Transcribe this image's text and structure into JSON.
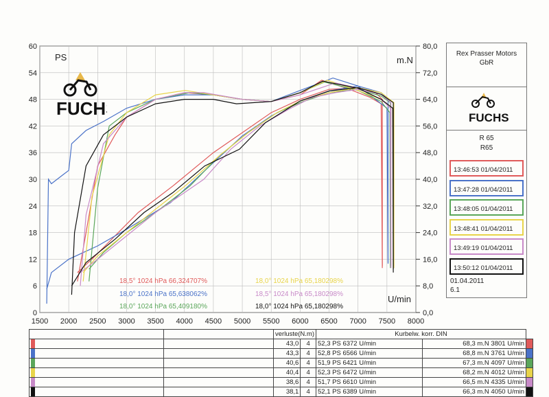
{
  "chart_data": {
    "type": "line",
    "xlabel": "U/min",
    "left_axis_label": "PS",
    "right_axis_label": "m.N",
    "x_ticks": [
      1500,
      2000,
      2500,
      3000,
      3500,
      4000,
      4500,
      5000,
      5500,
      6000,
      6500,
      7000,
      7500,
      8000
    ],
    "y_left_ticks": [
      0,
      6,
      12,
      18,
      24,
      30,
      36,
      42,
      48,
      54,
      60
    ],
    "y_right_ticks": [
      "0,0",
      "8,0",
      "16,0",
      "24,0",
      "32,0",
      "40,0",
      "48,0",
      "56,0",
      "64,0",
      "72,0",
      "80,0"
    ],
    "xlim": [
      1500,
      8000
    ],
    "ylim_left": [
      0,
      60
    ],
    "ylim_right": [
      0,
      80
    ],
    "grid": true,
    "series": [
      {
        "color": "#e05a5a",
        "power": [
          [
            2150,
            7
          ],
          [
            2300,
            18
          ],
          [
            2500,
            33
          ],
          [
            2800,
            40
          ],
          [
            3000,
            44
          ],
          [
            3500,
            48
          ],
          [
            4000,
            49.5
          ],
          [
            4500,
            49
          ],
          [
            5000,
            48
          ],
          [
            5500,
            47.5
          ],
          [
            6000,
            49
          ],
          [
            6372,
            52.3
          ],
          [
            6800,
            50.5
          ],
          [
            7200,
            48.5
          ],
          [
            7400,
            47
          ],
          [
            7420,
            10
          ]
        ],
        "torque": [
          [
            2150,
            12
          ],
          [
            2400,
            16
          ],
          [
            2800,
            23
          ],
          [
            3200,
            30
          ],
          [
            3801,
            38
          ],
          [
            4500,
            48
          ],
          [
            5000,
            54
          ],
          [
            5500,
            60
          ],
          [
            6000,
            64
          ],
          [
            6500,
            67
          ],
          [
            7000,
            67.5
          ],
          [
            7300,
            66
          ],
          [
            7420,
            64
          ],
          [
            7420,
            14
          ]
        ]
      },
      {
        "color": "#4a72c8",
        "power": [
          [
            1620,
            2
          ],
          [
            1650,
            30
          ],
          [
            1700,
            29
          ],
          [
            1900,
            31
          ],
          [
            2000,
            32
          ],
          [
            2050,
            38
          ],
          [
            2300,
            41
          ],
          [
            2600,
            43
          ],
          [
            3000,
            46
          ],
          [
            3500,
            48
          ],
          [
            4000,
            49
          ],
          [
            4500,
            49
          ],
          [
            5000,
            48
          ],
          [
            5500,
            47.5
          ],
          [
            6000,
            50
          ],
          [
            6566,
            52.8
          ],
          [
            7000,
            51
          ],
          [
            7300,
            48
          ],
          [
            7500,
            46
          ],
          [
            7520,
            11
          ]
        ],
        "torque": [
          [
            1620,
            7
          ],
          [
            1700,
            12
          ],
          [
            2000,
            16
          ],
          [
            2500,
            20
          ],
          [
            3000,
            25
          ],
          [
            3761,
            33
          ],
          [
            4500,
            45
          ],
          [
            5000,
            53
          ],
          [
            5500,
            59
          ],
          [
            6000,
            63.5
          ],
          [
            6500,
            66.5
          ],
          [
            7000,
            68
          ],
          [
            7400,
            66
          ],
          [
            7520,
            64
          ],
          [
            7520,
            15
          ]
        ]
      },
      {
        "color": "#5aa65a",
        "power": [
          [
            2350,
            7
          ],
          [
            2500,
            28
          ],
          [
            2700,
            42
          ],
          [
            3000,
            45
          ],
          [
            3500,
            48
          ],
          [
            4097,
            49.5
          ],
          [
            4500,
            49
          ],
          [
            5000,
            48
          ],
          [
            5500,
            47.5
          ],
          [
            6000,
            49.5
          ],
          [
            6421,
            51.9
          ],
          [
            7000,
            50
          ],
          [
            7400,
            47.5
          ],
          [
            7550,
            45
          ],
          [
            7560,
            10
          ]
        ],
        "torque": [
          [
            2350,
            13
          ],
          [
            2600,
            18
          ],
          [
            3000,
            24
          ],
          [
            3500,
            30
          ],
          [
            4097,
            38
          ],
          [
            4600,
            47
          ],
          [
            5100,
            54
          ],
          [
            5600,
            60
          ],
          [
            6000,
            63
          ],
          [
            6500,
            66
          ],
          [
            7000,
            67
          ],
          [
            7400,
            65
          ],
          [
            7560,
            63
          ],
          [
            7560,
            14
          ]
        ]
      },
      {
        "color": "#e8d44a",
        "power": [
          [
            2250,
            7
          ],
          [
            2400,
            26
          ],
          [
            2700,
            40
          ],
          [
            3000,
            45
          ],
          [
            3500,
            49
          ],
          [
            4012,
            50
          ],
          [
            4500,
            49
          ],
          [
            5000,
            48
          ],
          [
            5500,
            47.5
          ],
          [
            6000,
            49.5
          ],
          [
            6472,
            52.3
          ],
          [
            7000,
            50
          ],
          [
            7400,
            48
          ],
          [
            7600,
            46
          ],
          [
            7620,
            10
          ]
        ],
        "torque": [
          [
            2250,
            12
          ],
          [
            2500,
            17
          ],
          [
            3000,
            24
          ],
          [
            3500,
            31
          ],
          [
            4012,
            38
          ],
          [
            4600,
            47
          ],
          [
            5100,
            54
          ],
          [
            5600,
            60
          ],
          [
            6000,
            63.5
          ],
          [
            6500,
            66
          ],
          [
            7000,
            67.5
          ],
          [
            7400,
            66
          ],
          [
            7620,
            63
          ],
          [
            7620,
            14
          ]
        ]
      },
      {
        "color": "#c88ac8",
        "power": [
          [
            2200,
            6
          ],
          [
            2300,
            22
          ],
          [
            2600,
            38
          ],
          [
            3000,
            44
          ],
          [
            3500,
            48
          ],
          [
            4000,
            49.5
          ],
          [
            4335,
            49.5
          ],
          [
            5000,
            48
          ],
          [
            5500,
            47.5
          ],
          [
            6000,
            49
          ],
          [
            6610,
            51.7
          ],
          [
            7000,
            50.5
          ],
          [
            7400,
            48
          ],
          [
            7560,
            46
          ],
          [
            7570,
            10
          ]
        ],
        "torque": [
          [
            2200,
            12
          ],
          [
            2500,
            16
          ],
          [
            3000,
            23
          ],
          [
            3500,
            30
          ],
          [
            4335,
            40
          ],
          [
            4800,
            49
          ],
          [
            5300,
            56
          ],
          [
            5800,
            61
          ],
          [
            6200,
            64.5
          ],
          [
            6610,
            66
          ],
          [
            7000,
            67
          ],
          [
            7400,
            65.5
          ],
          [
            7570,
            63
          ],
          [
            7570,
            14
          ]
        ]
      },
      {
        "color": "#111111",
        "power": [
          [
            2050,
            4
          ],
          [
            2100,
            18
          ],
          [
            2300,
            33
          ],
          [
            2600,
            40
          ],
          [
            3000,
            44
          ],
          [
            3500,
            47
          ],
          [
            4000,
            48
          ],
          [
            4500,
            48
          ],
          [
            4900,
            47
          ],
          [
            5500,
            47.5
          ],
          [
            6000,
            49.5
          ],
          [
            6389,
            52.1
          ],
          [
            7000,
            50.5
          ],
          [
            7400,
            48
          ],
          [
            7600,
            46
          ],
          [
            7610,
            9
          ]
        ],
        "torque": [
          [
            2050,
            8
          ],
          [
            2300,
            15
          ],
          [
            2800,
            22
          ],
          [
            3300,
            30
          ],
          [
            3800,
            36
          ],
          [
            4350,
            44
          ],
          [
            4950,
            49
          ],
          [
            5400,
            57
          ],
          [
            6000,
            63.5
          ],
          [
            6500,
            66.5
          ],
          [
            7000,
            67.5
          ],
          [
            7400,
            65.5
          ],
          [
            7610,
            63
          ],
          [
            7610,
            13
          ]
        ]
      }
    ],
    "legend": [
      {
        "text": "18,5°  1024 hPa  66,324707%",
        "color": "#e05a5a"
      },
      {
        "text": "18,0°  1024 hPa  65,638062%",
        "color": "#4a72c8"
      },
      {
        "text": "18,0°  1024 hPa  65,409180%",
        "color": "#5aa65a"
      },
      {
        "text": "18,0°  1024 hPa  65,180298%",
        "color": "#e8d44a"
      },
      {
        "text": "18,5°  1024 hPa  65,180298%",
        "color": "#c88ac8"
      },
      {
        "text": "18,0°  1024 hPa  65,180298%",
        "color": "#111111"
      }
    ]
  },
  "panel": {
    "company_line1": "Rex Prasser Motors",
    "company_line2": "GbR",
    "model_line1": "R 65",
    "model_line2": "R65",
    "runs": [
      {
        "label": "13:46:53  01/04/2011",
        "color": "#e05a5a"
      },
      {
        "label": "13:47:28  01/04/2011",
        "color": "#4a72c8"
      },
      {
        "label": "13:48:05  01/04/2011",
        "color": "#5aa65a"
      },
      {
        "label": "13:48:41  01/04/2011",
        "color": "#e8d44a"
      },
      {
        "label": "13:49:19  01/04/2011",
        "color": "#c88ac8"
      },
      {
        "label": "13:50:12  01/04/2011",
        "color": "#111111"
      }
    ],
    "date": "01.04.2011",
    "version": "6.1"
  },
  "logo_text": "FUCHS",
  "table": {
    "header_verluste": "verluste(N.m)",
    "header_kurbel": "Kurbelw. korr. DIN",
    "rows": [
      {
        "color": "#e05a5a",
        "loss": "43,0",
        "n": "4",
        "power": "52,3 PS 6372 U/min",
        "torque": "68,3 m.N 3801 U/min"
      },
      {
        "color": "#4a72c8",
        "loss": "43,3",
        "n": "4",
        "power": "52,8 PS 6566 U/min",
        "torque": "68,8 m.N 3761 U/min"
      },
      {
        "color": "#5aa65a",
        "loss": "40,6",
        "n": "4",
        "power": "51,9 PS 6421 U/min",
        "torque": "67,3 m.N 4097 U/min"
      },
      {
        "color": "#e8d44a",
        "loss": "40,4",
        "n": "4",
        "power": "52,3 PS 6472 U/min",
        "torque": "68,2 m.N 4012 U/min"
      },
      {
        "color": "#c88ac8",
        "loss": "38,6",
        "n": "4",
        "power": "51,7 PS 6610 U/min",
        "torque": "66,5 m.N 4335 U/min"
      },
      {
        "color": "#111111",
        "loss": "38,1",
        "n": "4",
        "power": "52,1 PS 6389 U/min",
        "torque": "66,3 m.N 4050 U/min"
      }
    ]
  }
}
